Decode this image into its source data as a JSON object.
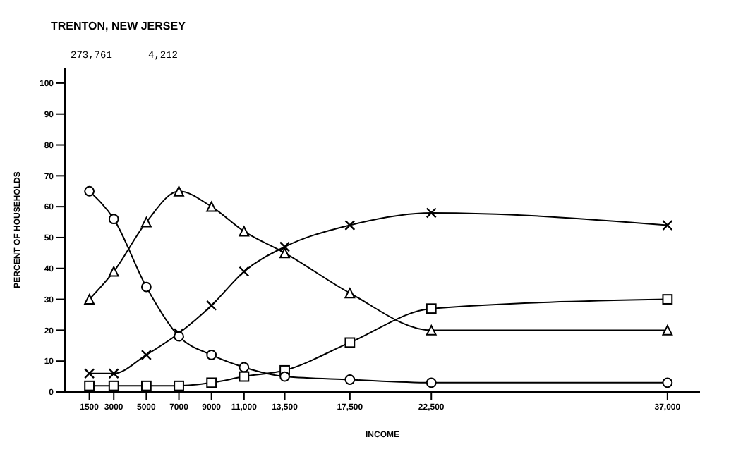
{
  "chart_data": {
    "type": "line",
    "title": "TRENTON, NEW JERSEY",
    "annotations": [
      "273,761",
      "4,212"
    ],
    "xlabel": "INCOME",
    "ylabel": "PERCENT OF HOUSEHOLDS",
    "x": [
      1500,
      3000,
      5000,
      7000,
      9000,
      11000,
      13500,
      17500,
      22500,
      37000
    ],
    "xlim": [
      0,
      39000
    ],
    "xticks": [
      1500,
      3000,
      5000,
      7000,
      9000,
      {
        "value": 11000,
        "label": "11,000"
      },
      {
        "value": 13500,
        "label": "13,500"
      },
      {
        "value": 17500,
        "label": "17,500"
      },
      {
        "value": 22500,
        "label": "22,500"
      },
      {
        "value": 37000,
        "label": "37,000"
      }
    ],
    "ylim": [
      0,
      105
    ],
    "yticks": [
      0,
      10,
      20,
      30,
      40,
      50,
      60,
      70,
      80,
      90,
      100
    ],
    "grid": false,
    "legend": false,
    "line_style": "solid",
    "series": [
      {
        "color": "#000000",
        "marker": "circle",
        "values": [
          65,
          56,
          34,
          18,
          12,
          8,
          5,
          4,
          3,
          3
        ]
      },
      {
        "color": "#000000",
        "marker": "triangle",
        "values": [
          30,
          39,
          55,
          65,
          60,
          52,
          45,
          32,
          20,
          20
        ]
      },
      {
        "color": "#000000",
        "marker": "cross",
        "values": [
          6,
          6,
          12,
          19,
          28,
          39,
          47,
          54,
          58,
          54
        ]
      },
      {
        "color": "#000000",
        "marker": "square",
        "values": [
          2,
          2,
          2,
          2,
          3,
          5,
          7,
          16,
          27,
          30
        ]
      }
    ]
  }
}
